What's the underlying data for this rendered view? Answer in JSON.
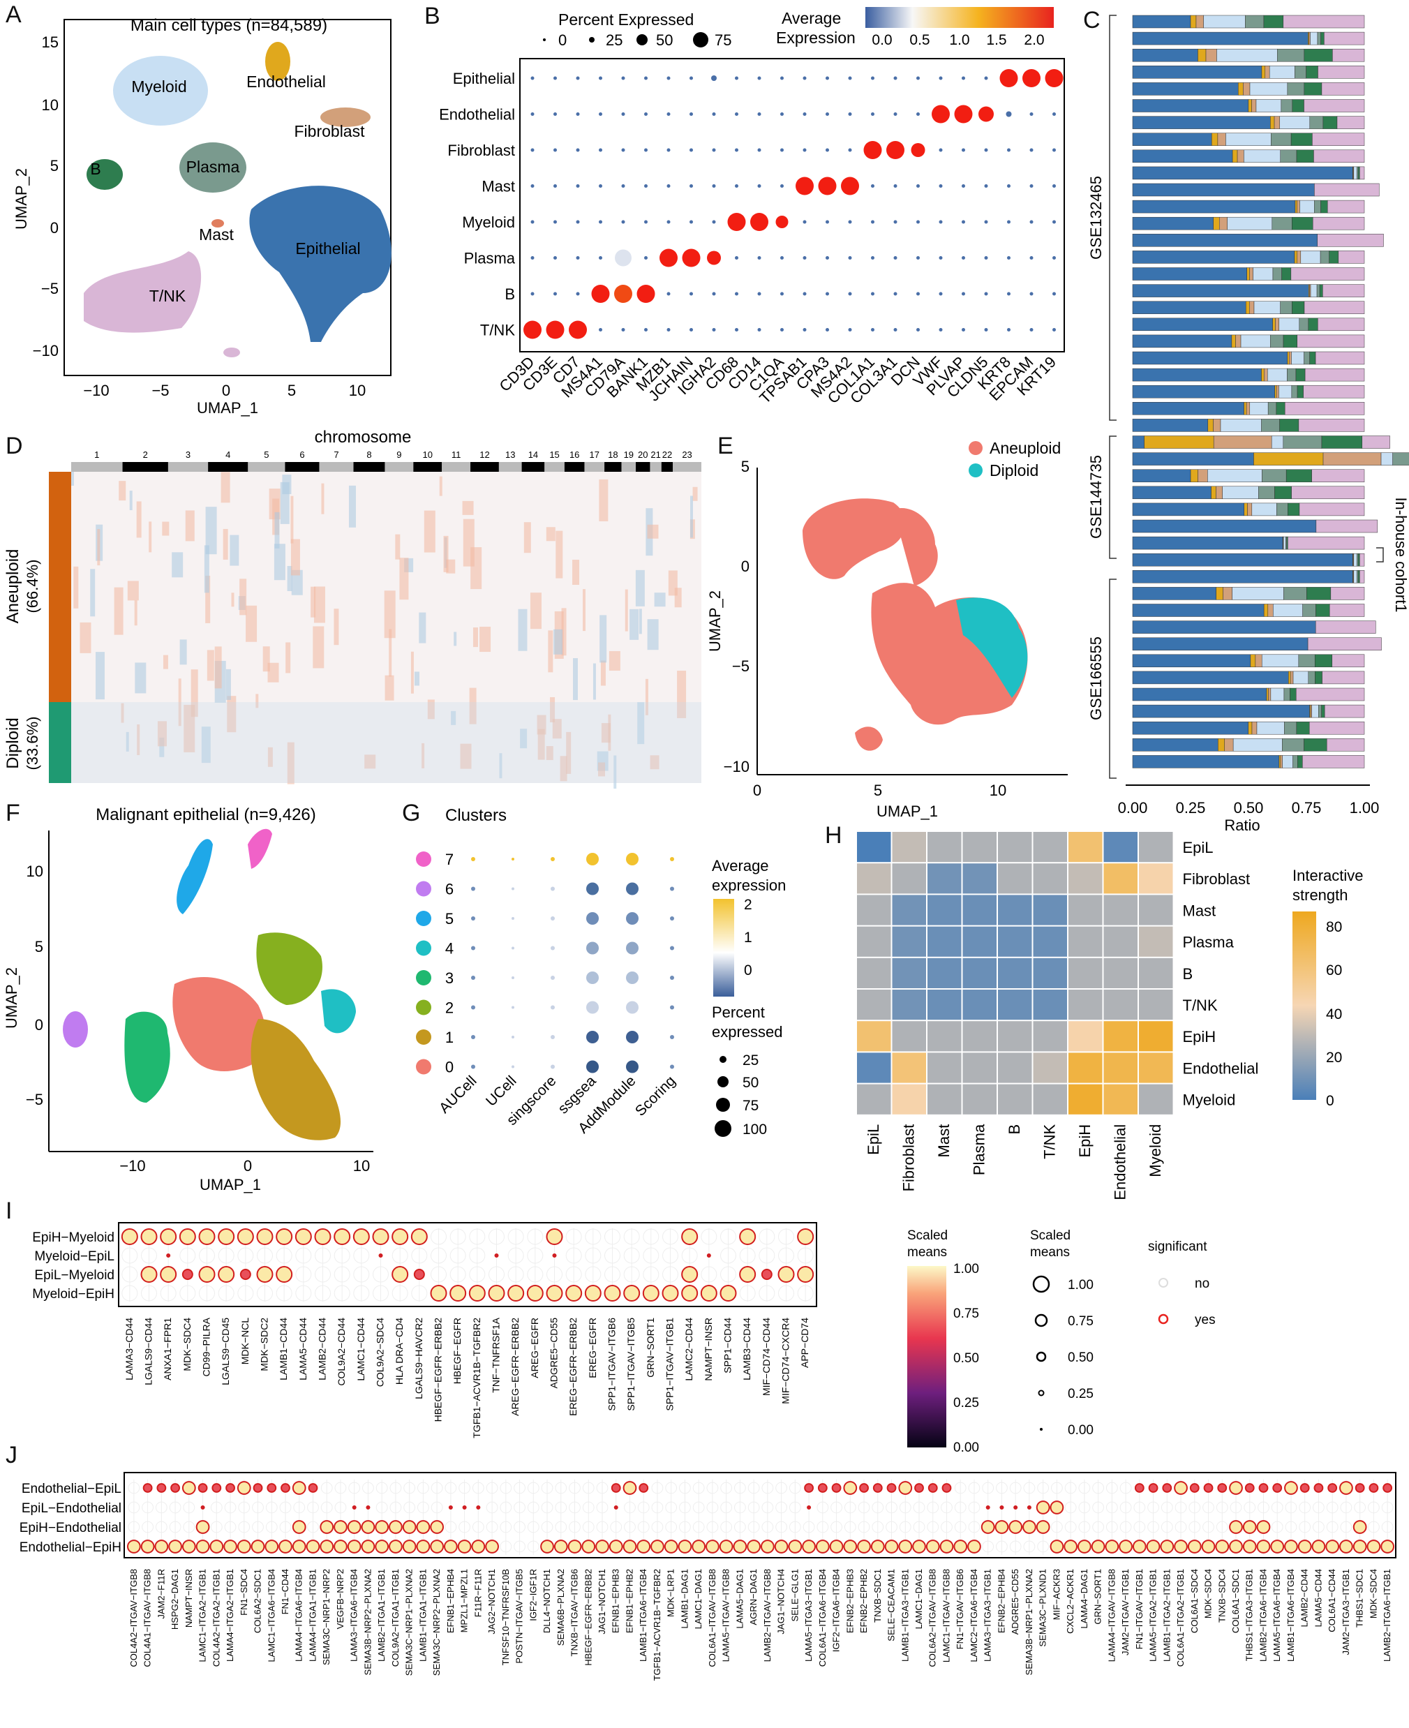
{
  "panel_letters": [
    "A",
    "B",
    "C",
    "D",
    "E",
    "F",
    "G",
    "H",
    "I",
    "J"
  ],
  "panelA": {
    "title": "Main cell types (n=84,589)",
    "xlabel": "UMAP_1",
    "ylabel": "UMAP_2",
    "xticks": [
      "−10",
      "−5",
      "0",
      "5",
      "10"
    ],
    "yticks": [
      "15",
      "10",
      "5",
      "0",
      "−5",
      "−10"
    ],
    "clusters": [
      {
        "name": "Endothelial",
        "color": "#E0A81D"
      },
      {
        "name": "Myeloid",
        "color": "#C8DFF3"
      },
      {
        "name": "Fibroblast",
        "color": "#D2A07A"
      },
      {
        "name": "B",
        "color": "#2E7D4F"
      },
      {
        "name": "Plasma",
        "color": "#7A9A8E"
      },
      {
        "name": "Mast",
        "color": "#E07E5E"
      },
      {
        "name": "Epithelial",
        "color": "#3A73AE"
      },
      {
        "name": "T/NK",
        "color": "#D9B6D6"
      }
    ]
  },
  "panelB": {
    "legend_pct_title": "Percent Expressed",
    "legend_pct_values": [
      "0",
      "25",
      "50",
      "75"
    ],
    "legend_avg_title_1": "Average",
    "legend_avg_title_2": "Expression",
    "legend_avg_values": [
      "0.0",
      "0.5",
      "1.0",
      "1.5",
      "2.0"
    ],
    "rows": [
      "Epithelial",
      "Endothelial",
      "Fibroblast",
      "Mast",
      "Myeloid",
      "Plasma",
      "B",
      "T/NK"
    ],
    "genes": [
      "CD3D",
      "CD3E",
      "CD7",
      "MS4A1",
      "CD79A",
      "BANK1",
      "MZB1",
      "JCHAIN",
      "IGHA2",
      "CD68",
      "CD14",
      "C1QA",
      "TPSAB1",
      "CPA3",
      "MS4A2",
      "COL1A1",
      "COL3A1",
      "DCN",
      "VWF",
      "PLVAP",
      "CLDN5",
      "KRT8",
      "EPCAM",
      "KRT19"
    ]
  },
  "panelC": {
    "xlabel": "Ratio",
    "xticks": [
      "0.00",
      "0.25",
      "0.50",
      "0.75",
      "1.00"
    ],
    "groups": [
      "GSE132465",
      "GSE144735",
      "GSE166555"
    ],
    "side_label": "In-house cohort1",
    "colors": [
      "#3A73AE",
      "#E0A81D",
      "#D2A07A",
      "#C8DFF3",
      "#7A9A8E",
      "#2E7D4F",
      "#E07E5E",
      "#D9B6D6"
    ]
  },
  "panelD": {
    "title": "chromosome",
    "chromosomes": [
      "1",
      "2",
      "3",
      "4",
      "5",
      "6",
      "7",
      "8",
      "9",
      "10",
      "11",
      "12",
      "13",
      "14",
      "15",
      "16",
      "17",
      "18",
      "19",
      "20",
      "21",
      "22",
      "23"
    ],
    "row_label_1": "Aneuploid",
    "row_label_1b": "(66.4%)",
    "row_label_2": "Diploid",
    "row_label_2b": "(33.6%)"
  },
  "panelE": {
    "legend": [
      {
        "name": "Aneuploid",
        "color": "#F07A6E"
      },
      {
        "name": "Diploid",
        "color": "#1FBFC4"
      }
    ],
    "xlabel": "UMAP_1",
    "ylabel": "UMAP_2",
    "xticks": [
      "0",
      "5",
      "10"
    ],
    "yticks": [
      "5",
      "0",
      "−5",
      "−10"
    ]
  },
  "panelF": {
    "title": "Malignant epithelial (n=9,426)",
    "xlabel": "UMAP_1",
    "ylabel": "UMAP_2",
    "xticks": [
      "−10",
      "0",
      "10"
    ],
    "yticks": [
      "10",
      "5",
      "0",
      "−5"
    ]
  },
  "panelG": {
    "title": "Clusters",
    "clusters": [
      {
        "name": "7",
        "color": "#F062C8"
      },
      {
        "name": "6",
        "color": "#C07CF0"
      },
      {
        "name": "5",
        "color": "#1FA8E8"
      },
      {
        "name": "4",
        "color": "#1FBFC4"
      },
      {
        "name": "3",
        "color": "#1FB870"
      },
      {
        "name": "2",
        "color": "#86B01F"
      },
      {
        "name": "1",
        "color": "#C4981F"
      },
      {
        "name": "0",
        "color": "#F07A6E"
      }
    ],
    "methods": [
      "AUCell",
      "UCell",
      "singscore",
      "ssgsea",
      "AddModule",
      "Scoring"
    ],
    "legend_avg_1": "Average",
    "legend_avg_2": "expression",
    "legend_avg_ticks": [
      "2",
      "1",
      "0"
    ],
    "legend_pct_1": "Percent",
    "legend_pct_2": "expressed",
    "legend_pct_values": [
      "25",
      "50",
      "75",
      "100"
    ]
  },
  "panelH": {
    "rows": [
      "EpiL",
      "Fibroblast",
      "Mast",
      "Plasma",
      "B",
      "T/NK",
      "EpiH",
      "Endothelial",
      "Myeloid"
    ],
    "cols": [
      "EpiL",
      "Fibroblast",
      "Mast",
      "Plasma",
      "B",
      "T/NK",
      "EpiH",
      "Endothelial",
      "Myeloid"
    ],
    "legend_title_1": "Interactive",
    "legend_title_2": "strength",
    "legend_ticks": [
      "80",
      "60",
      "40",
      "20",
      "0"
    ],
    "values": [
      [
        0,
        30,
        25,
        25,
        25,
        25,
        62,
        5,
        25
      ],
      [
        30,
        25,
        10,
        10,
        25,
        25,
        30,
        65,
        45
      ],
      [
        25,
        10,
        8,
        8,
        8,
        8,
        25,
        25,
        25
      ],
      [
        25,
        10,
        8,
        8,
        8,
        8,
        25,
        25,
        30
      ],
      [
        25,
        10,
        8,
        8,
        8,
        8,
        25,
        25,
        25
      ],
      [
        25,
        10,
        8,
        8,
        8,
        8,
        25,
        25,
        25
      ],
      [
        62,
        25,
        25,
        25,
        25,
        25,
        45,
        75,
        80
      ],
      [
        5,
        60,
        25,
        25,
        25,
        30,
        75,
        72,
        70
      ],
      [
        25,
        45,
        25,
        25,
        25,
        25,
        80,
        70,
        25
      ]
    ]
  },
  "panelI": {
    "rows": [
      "EpiH−Myeloid",
      "Myeloid−EpiL",
      "EpiL−Myeloid",
      "Myeloid−EpiH"
    ],
    "pairs": [
      "LAMA3−CD44",
      "LGALS9−CD44",
      "ANXA1−FPR1",
      "MDK−SDC4",
      "CD99−PILRA",
      "LGALS9−CD45",
      "MDK−NCL",
      "MDK−SDC2",
      "LAMB1−CD44",
      "LAMA5−CD44",
      "LAMB2−CD44",
      "COL9A2−CD44",
      "LAMC1−CD44",
      "COL9A2−SDC4",
      "HLA DRA−CD4",
      "LGALS9−HAVCR2",
      "HBEGF−EGFR−ERBB2",
      "HBEGF−EGFR",
      "TGFB1−ACVR1B−TGFBR2",
      "TNF−TNFRSF1A",
      "AREG−EGFR−ERBB2",
      "AREG−EGFR",
      "ADGRE5−CD55",
      "EREG−EGFR−ERBB2",
      "EREG−EGFR",
      "SPP1−ITGAV−ITGB6",
      "SPP1−ITGAV−ITGB5",
      "GRN−SORT1",
      "SPP1−ITGAV−ITGB1",
      "LAMC2−CD44",
      "NAMPT−INSR",
      "SPP1−CD44",
      "LAMB3−CD44",
      "MIF−CD74−CD44",
      "MIF−CD74−CXCR4",
      "APP−CD74"
    ],
    "legend_color_1": "Scaled",
    "legend_color_2": "means",
    "legend_color_ticks": [
      "1.00",
      "0.75",
      "0.50",
      "0.25",
      "0.00"
    ],
    "legend_size_1": "Scaled",
    "legend_size_2": "means",
    "legend_size_ticks": [
      "1.00",
      "0.75",
      "0.50",
      "0.25",
      "0.00"
    ],
    "legend_sig_title": "significant",
    "legend_sig_values": [
      "no",
      "yes"
    ]
  },
  "panelJ": {
    "rows": [
      "Endothelial−EpiL",
      "EpiL−Endothelial",
      "EpiH−Endothelial",
      "Endothelial−EpiH"
    ],
    "pairs": [
      "COL4A2−ITGAV−ITGB8",
      "COL4A1−ITGAV−ITGB8",
      "JAM2−F11R",
      "HSPG2−DAG1",
      "NAMPT−INSR",
      "LAMC1−ITGA2−ITGB1",
      "COL4A2−ITGA2−ITGB1",
      "LAMA4−ITGA2−ITGB1",
      "FN1−SDC4",
      "COL6A2−SDC1",
      "LAMC1−ITGA6−ITGB4",
      "FN1−CD44",
      "LAMA4−ITGA6−ITGB4",
      "LAMA4−ITGA1−ITGB1",
      "SEMA3C−NRP1−NRP2",
      "VEGFB−NRP2",
      "LAMA3−ITGA6−ITGB4",
      "SEMA3B−NRP2−PLXNA2",
      "LAMB2−ITGA1−ITGB1",
      "COL9A2−ITGA1−ITGB1",
      "SEMA3C−NRP1−PLXNA2",
      "LAMB1−ITGA1−ITGB1",
      "SEMA3C−NRP2−PLXNA2",
      "EFNB1−EPHB4",
      "MPZL1−MPZL1",
      "F11R−F11R",
      "JAG2−NOTCH1",
      "TNFSF10−TNFRSF10B",
      "POSTN−ITGAV−ITGB5",
      "IGF2−IGF1R",
      "DLL4−NOTCH1",
      "SEMA6B−PLXNA2",
      "TNXB−ITGAV−ITGB6",
      "HBEGF−EGFR−ERBB2",
      "JAG1−NOTCH1",
      "EFNB1−EPHB3",
      "EFNB1−EPHB2",
      "LAMB1−ITGA6−ITGB4",
      "TGFB1−ACVR1B−TGFBR2",
      "MDK−LRP1",
      "LAMB1−DAG1",
      "LAMC1−DAG1",
      "COL6A1−ITGAV−ITGB8",
      "LAMA5−ITGAV−ITGB8",
      "LAMA5−DAG1",
      "AGRN−DAG1",
      "LAMB2−ITGAV−ITGB8",
      "JAG1−NOTCH4",
      "SELE−GLG1",
      "LAMA5−ITGA3−ITGB1",
      "COL6A1−ITGA6−ITGB4",
      "IGF2−ITGA6−ITGB4",
      "EFNB2−EPHB3",
      "EFNB2−EPHB2",
      "TNXB−SDC1",
      "SELE−CEACAM1",
      "LAMB1−ITGA3−ITGB1",
      "LAMC1−DAG1",
      "COL6A2−ITGAV−ITGB8",
      "LAMC1−ITGAV−ITGB8",
      "FN1−ITGAV−ITGB6",
      "LAMC2−ITGA6−ITGB4",
      "LAMA3−ITGA3−ITGB1",
      "EFNB2−EPHB4",
      "ADGRE5−CD55",
      "SEMA3B−NRP1−PLXNA2",
      "SEMA3C−PLXND1",
      "MIF−ACKR3",
      "CXCL2−ACKR1",
      "LAMA4−DAG1",
      "GRN−SORT1",
      "LAMA4−ITGAV−ITGB8",
      "JAM2−ITGAV−ITGB1",
      "FN1−ITGAV−ITGB1",
      "LAMA5−ITGA2−ITGB1",
      "LAMB1−ITGA2−ITGB1",
      "COL6A1−ITGA2−ITGB1",
      "COL6A1−SDC4",
      "MDK−SDC4",
      "TNXB−SDC4",
      "COL6A1−SDC1",
      "THBS1−ITGA3−ITGB1",
      "LAMB2−ITGA6−ITGB4",
      "LAMA5−ITGA6−ITGB4",
      "LAMB1−ITGA6−ITGB4",
      "LAMB2−CD44",
      "LAMA5−CD44",
      "COL6A1−CD44",
      "JAM2−ITGA3−ITGB1",
      "THBS1−SDC1",
      "MDK−SDC4",
      "LAMB2−ITGA6−ITGB1"
    ]
  }
}
